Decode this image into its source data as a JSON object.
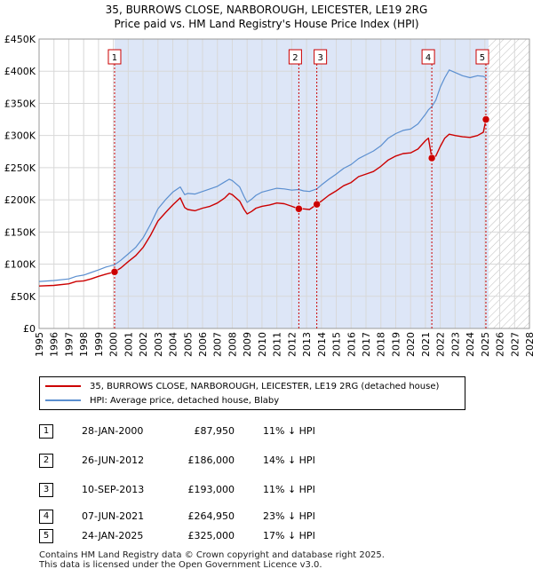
{
  "title_line1": "35, BURROWS CLOSE, NARBOROUGH, LEICESTER, LE19 2RG",
  "title_line2": "Price paid vs. HM Land Registry's House Price Index (HPI)",
  "chart_data": {
    "type": "line",
    "title": "35, BURROWS CLOSE, NARBOROUGH, LEICESTER, LE19 2RG - Price paid vs. HM Land Registry's House Price Index (HPI)",
    "xlabel": "",
    "ylabel": "",
    "xlim": [
      1995,
      2028
    ],
    "ylim": [
      0,
      450000
    ],
    "x_ticks": [
      1995,
      1996,
      1997,
      1998,
      1999,
      2000,
      2001,
      2002,
      2003,
      2004,
      2005,
      2006,
      2007,
      2008,
      2009,
      2010,
      2011,
      2012,
      2013,
      2014,
      2015,
      2016,
      2017,
      2018,
      2019,
      2020,
      2021,
      2022,
      2023,
      2024,
      2025,
      2026,
      2027,
      2028
    ],
    "y_ticks": [
      0,
      50000,
      100000,
      150000,
      200000,
      250000,
      300000,
      350000,
      400000,
      450000
    ],
    "y_tick_labels": [
      "£0",
      "£50K",
      "£100K",
      "£150K",
      "£200K",
      "£250K",
      "£300K",
      "£350K",
      "£400K",
      "£450K"
    ],
    "grid": true,
    "shaded_ownership_from": 2000.08,
    "hatched_future_from": 2025.25,
    "colors": {
      "property": "#cc0000",
      "hpi": "#5b8fd0",
      "shade": "#dde6f7",
      "vline": "#cc0000"
    },
    "series": [
      {
        "name": "35, BURROWS CLOSE, NARBOROUGH, LEICESTER, LE19 2RG (detached house)",
        "color": "#cc0000",
        "points": [
          [
            1995.0,
            66000
          ],
          [
            1996.0,
            67000
          ],
          [
            1997.0,
            69500
          ],
          [
            1997.5,
            73000
          ],
          [
            1998.0,
            74000
          ],
          [
            1998.5,
            77000
          ],
          [
            1999.0,
            81000
          ],
          [
            1999.5,
            84500
          ],
          [
            2000.08,
            87950
          ],
          [
            2000.5,
            94000
          ],
          [
            2001.0,
            104000
          ],
          [
            2001.5,
            113000
          ],
          [
            2002.0,
            126000
          ],
          [
            2002.5,
            145000
          ],
          [
            2003.0,
            167000
          ],
          [
            2003.5,
            180000
          ],
          [
            2004.0,
            192000
          ],
          [
            2004.5,
            203000
          ],
          [
            2004.8,
            188000
          ],
          [
            2005.0,
            185000
          ],
          [
            2005.5,
            183000
          ],
          [
            2006.0,
            187000
          ],
          [
            2006.5,
            190000
          ],
          [
            2007.0,
            195000
          ],
          [
            2007.5,
            203000
          ],
          [
            2007.8,
            210000
          ],
          [
            2008.0,
            208000
          ],
          [
            2008.5,
            198000
          ],
          [
            2008.8,
            185000
          ],
          [
            2009.0,
            178000
          ],
          [
            2009.3,
            182000
          ],
          [
            2009.6,
            187000
          ],
          [
            2010.0,
            190000
          ],
          [
            2010.5,
            192000
          ],
          [
            2011.0,
            195000
          ],
          [
            2011.5,
            194000
          ],
          [
            2012.0,
            190000
          ],
          [
            2012.48,
            186000
          ],
          [
            2012.8,
            186000
          ],
          [
            2013.2,
            185000
          ],
          [
            2013.69,
            193000
          ],
          [
            2014.0,
            198000
          ],
          [
            2014.5,
            207000
          ],
          [
            2015.0,
            214000
          ],
          [
            2015.5,
            222000
          ],
          [
            2016.0,
            227000
          ],
          [
            2016.5,
            236000
          ],
          [
            2017.0,
            240000
          ],
          [
            2017.5,
            244000
          ],
          [
            2018.0,
            252000
          ],
          [
            2018.5,
            262000
          ],
          [
            2019.0,
            268000
          ],
          [
            2019.5,
            272000
          ],
          [
            2020.0,
            273000
          ],
          [
            2020.5,
            279000
          ],
          [
            2021.0,
            292000
          ],
          [
            2021.2,
            296000
          ],
          [
            2021.43,
            264950
          ],
          [
            2021.7,
            268000
          ],
          [
            2022.0,
            283000
          ],
          [
            2022.3,
            296000
          ],
          [
            2022.6,
            302000
          ],
          [
            2023.0,
            300000
          ],
          [
            2023.5,
            298000
          ],
          [
            2024.0,
            297000
          ],
          [
            2024.5,
            300000
          ],
          [
            2024.9,
            305000
          ],
          [
            2025.07,
            325000
          ]
        ]
      },
      {
        "name": "HPI: Average price, detached house, Blaby",
        "color": "#5b8fd0",
        "points": [
          [
            1995.0,
            73000
          ],
          [
            1996.0,
            74500
          ],
          [
            1997.0,
            77000
          ],
          [
            1997.5,
            81000
          ],
          [
            1998.0,
            83000
          ],
          [
            1998.5,
            87000
          ],
          [
            1999.0,
            91000
          ],
          [
            1999.5,
            95500
          ],
          [
            2000.08,
            99000
          ],
          [
            2000.5,
            106000
          ],
          [
            2001.0,
            116000
          ],
          [
            2001.5,
            126000
          ],
          [
            2002.0,
            141000
          ],
          [
            2002.5,
            162000
          ],
          [
            2003.0,
            186000
          ],
          [
            2003.5,
            200000
          ],
          [
            2004.0,
            212000
          ],
          [
            2004.5,
            220000
          ],
          [
            2004.8,
            208000
          ],
          [
            2005.0,
            210000
          ],
          [
            2005.5,
            209000
          ],
          [
            2006.0,
            213000
          ],
          [
            2006.5,
            217000
          ],
          [
            2007.0,
            221000
          ],
          [
            2007.5,
            228000
          ],
          [
            2007.8,
            232000
          ],
          [
            2008.0,
            230000
          ],
          [
            2008.5,
            220000
          ],
          [
            2008.8,
            205000
          ],
          [
            2009.0,
            196000
          ],
          [
            2009.3,
            201000
          ],
          [
            2009.6,
            207000
          ],
          [
            2010.0,
            212000
          ],
          [
            2010.5,
            215000
          ],
          [
            2011.0,
            218000
          ],
          [
            2011.5,
            217000
          ],
          [
            2012.0,
            215000
          ],
          [
            2012.48,
            216000
          ],
          [
            2012.8,
            214000
          ],
          [
            2013.2,
            213000
          ],
          [
            2013.69,
            217000
          ],
          [
            2014.0,
            223000
          ],
          [
            2014.5,
            232000
          ],
          [
            2015.0,
            240000
          ],
          [
            2015.5,
            249000
          ],
          [
            2016.0,
            255000
          ],
          [
            2016.5,
            264000
          ],
          [
            2017.0,
            270000
          ],
          [
            2017.5,
            276000
          ],
          [
            2018.0,
            284000
          ],
          [
            2018.5,
            296000
          ],
          [
            2019.0,
            303000
          ],
          [
            2019.5,
            308000
          ],
          [
            2020.0,
            310000
          ],
          [
            2020.5,
            318000
          ],
          [
            2021.0,
            333000
          ],
          [
            2021.2,
            340000
          ],
          [
            2021.43,
            345000
          ],
          [
            2021.7,
            355000
          ],
          [
            2022.0,
            375000
          ],
          [
            2022.3,
            390000
          ],
          [
            2022.6,
            402000
          ],
          [
            2023.0,
            398000
          ],
          [
            2023.5,
            393000
          ],
          [
            2024.0,
            390000
          ],
          [
            2024.5,
            393000
          ],
          [
            2024.9,
            392000
          ],
          [
            2025.07,
            390000
          ]
        ]
      }
    ],
    "sales": [
      {
        "label": "1",
        "x": 2000.08,
        "price": 87950
      },
      {
        "label": "2",
        "x": 2012.48,
        "price": 186000
      },
      {
        "label": "3",
        "x": 2013.69,
        "price": 193000
      },
      {
        "label": "4",
        "x": 2021.43,
        "price": 264950
      },
      {
        "label": "5",
        "x": 2025.07,
        "price": 325000
      }
    ]
  },
  "legend": {
    "property_label": "35, BURROWS CLOSE, NARBOROUGH, LEICESTER, LE19 2RG (detached house)",
    "hpi_label": "HPI: Average price, detached house, Blaby"
  },
  "sales_table": [
    {
      "num": "1",
      "date": "28-JAN-2000",
      "price": "£87,950",
      "hpi": "11% ↓ HPI"
    },
    {
      "num": "2",
      "date": "26-JUN-2012",
      "price": "£186,000",
      "hpi": "14% ↓ HPI"
    },
    {
      "num": "3",
      "date": "10-SEP-2013",
      "price": "£193,000",
      "hpi": "11% ↓ HPI"
    },
    {
      "num": "4",
      "date": "07-JUN-2021",
      "price": "£264,950",
      "hpi": "23% ↓ HPI"
    },
    {
      "num": "5",
      "date": "24-JAN-2025",
      "price": "£325,000",
      "hpi": "17% ↓ HPI"
    }
  ],
  "footer_line1": "Contains HM Land Registry data © Crown copyright and database right 2025.",
  "footer_line2": "This data is licensed under the Open Government Licence v3.0."
}
